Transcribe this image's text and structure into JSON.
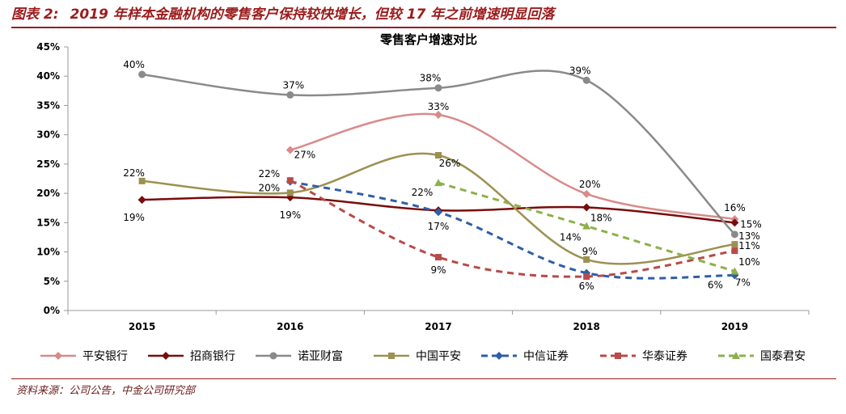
{
  "figure": {
    "label": "图表 2:",
    "title": "2019 年样本金融机构的零售客户保持较快增长，但较 17 年之前增速明显回落",
    "source": "资料来源：公司公告，中金公司研究部"
  },
  "chart_data": {
    "type": "line",
    "title": "零售客户增速对比",
    "xlabel": "",
    "ylabel": "",
    "categories": [
      "2015",
      "2016",
      "2017",
      "2018",
      "2019"
    ],
    "ylim": [
      0,
      45
    ],
    "yticks": [
      "0%",
      "5%",
      "10%",
      "15%",
      "20%",
      "25%",
      "30%",
      "35%",
      "40%",
      "45%"
    ],
    "grid": false,
    "legend": "bottom",
    "series": [
      {
        "name": "平安银行",
        "color": "#d98a8a",
        "dash": false,
        "marker": "diamond",
        "values": [
          null,
          27.4,
          33.4,
          19.9,
          15.6
        ],
        "labels": [
          null,
          "27%",
          "33%",
          "20%",
          "16%"
        ]
      },
      {
        "name": "招商银行",
        "color": "#7a0c0c",
        "dash": false,
        "marker": "diamond",
        "values": [
          18.9,
          19.3,
          17.1,
          17.6,
          15.0
        ],
        "labels": [
          "19%",
          "19%",
          "17%",
          "18%",
          "15%"
        ]
      },
      {
        "name": "诺亚财富",
        "color": "#8a8a8a",
        "dash": false,
        "marker": "circle",
        "values": [
          40.3,
          36.8,
          38.0,
          39.3,
          13.0
        ],
        "labels": [
          "40%",
          "37%",
          "38%",
          "39%",
          "13%"
        ]
      },
      {
        "name": "中国平安",
        "color": "#9c9150",
        "dash": false,
        "marker": "square",
        "values": [
          22.1,
          20.1,
          26.5,
          8.7,
          11.3
        ],
        "labels": [
          "22%",
          "20%",
          "26%",
          "9%",
          "11%"
        ]
      },
      {
        "name": "中信证券",
        "color": "#2f5ea8",
        "dash": true,
        "marker": "diamond",
        "values": [
          null,
          22.0,
          16.8,
          6.4,
          6.0
        ],
        "labels": [
          null,
          null,
          null,
          null,
          "6%"
        ]
      },
      {
        "name": "华泰证券",
        "color": "#b84a48",
        "dash": true,
        "marker": "square",
        "values": [
          null,
          22.2,
          9.1,
          5.8,
          10.2
        ],
        "labels": [
          null,
          "22%",
          "9%",
          "6%",
          "10%"
        ]
      },
      {
        "name": "国泰君安",
        "color": "#8db04a",
        "dash": true,
        "marker": "triangle",
        "values": [
          null,
          null,
          21.8,
          14.4,
          6.7
        ],
        "labels": [
          null,
          null,
          "22%",
          "14%",
          "7%"
        ]
      }
    ]
  }
}
